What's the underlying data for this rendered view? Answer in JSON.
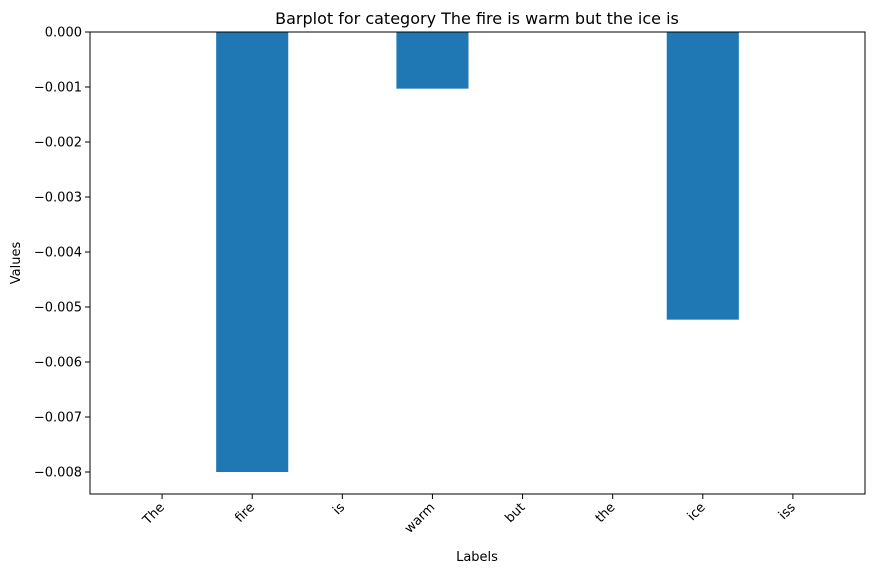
{
  "chart_data": {
    "type": "bar",
    "title": "Barplot for category The fire is warm but the ice is",
    "xlabel": "Labels",
    "ylabel": "Values",
    "categories": [
      "The",
      "fire",
      "is",
      "warm",
      "but",
      "the",
      "ice",
      "iss"
    ],
    "values": [
      0,
      -0.008,
      0,
      -0.00103,
      0,
      0,
      -0.00523,
      0
    ],
    "ylim": [
      -0.0084,
      0.0
    ],
    "yticks": [
      0.0,
      -0.001,
      -0.002,
      -0.003,
      -0.004,
      -0.005,
      -0.006,
      -0.007,
      -0.008
    ],
    "ytick_labels": [
      "0.000",
      "−0.001",
      "−0.002",
      "−0.003",
      "−0.004",
      "−0.005",
      "−0.006",
      "−0.007",
      "−0.008"
    ],
    "bar_color": "#1f77b4",
    "grid": false,
    "legend": "none"
  }
}
